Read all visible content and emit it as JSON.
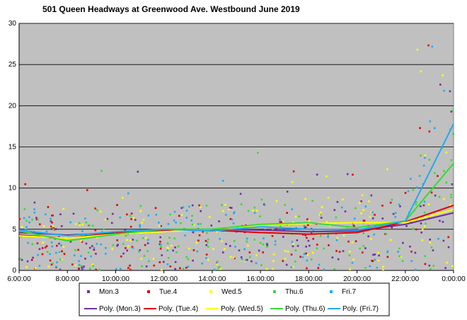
{
  "chart_data": {
    "type": "scatter",
    "title": "501 Queen Headways at Greenwood Ave. Westbound June 2019",
    "x_ticks": [
      "6:00:00",
      "8:00:00",
      "10:00:00",
      "12:00:00",
      "14:00:00",
      "16:00:00",
      "18:00:00",
      "20:00:00",
      "22:00:00",
      "0:00:00"
    ],
    "x_range_hours": [
      6,
      24
    ],
    "ylim": [
      0,
      30
    ],
    "y_ticks": [
      0,
      5,
      10,
      15,
      20,
      25,
      30
    ],
    "grid": "horizontal",
    "background": "#c0c0c0",
    "legend_position": "bottom",
    "series": [
      {
        "name": "Mon.3",
        "color": "#7030a0",
        "seed": 11
      },
      {
        "name": "Tue.4",
        "color": "#e00000",
        "seed": 23
      },
      {
        "name": "Wed.5",
        "color": "#ffff00",
        "seed": 37
      },
      {
        "name": "Thu.6",
        "color": "#33dd33",
        "seed": 51
      },
      {
        "name": "Fri.7",
        "color": "#22aaee",
        "seed": 67
      }
    ],
    "trendlines": [
      {
        "name": "Poly. (Mon.3)",
        "color": "#7030a0",
        "points": [
          [
            6,
            4.6
          ],
          [
            8,
            4.3
          ],
          [
            10,
            4.6
          ],
          [
            12,
            4.9
          ],
          [
            14,
            5.0
          ],
          [
            16,
            4.9
          ],
          [
            18,
            4.7
          ],
          [
            20,
            4.8
          ],
          [
            22,
            5.6
          ],
          [
            24,
            7.0
          ]
        ]
      },
      {
        "name": "Poly. (Tue.4)",
        "color": "#e00000",
        "points": [
          [
            6,
            4.3
          ],
          [
            8,
            3.9
          ],
          [
            10,
            4.6
          ],
          [
            12,
            4.8
          ],
          [
            14,
            4.9
          ],
          [
            16,
            4.6
          ],
          [
            18,
            4.4
          ],
          [
            20,
            4.6
          ],
          [
            22,
            5.9
          ],
          [
            24,
            7.9
          ]
        ]
      },
      {
        "name": "Poly. (Wed.5)",
        "color": "#ffff00",
        "points": [
          [
            6,
            4.2
          ],
          [
            8,
            3.9
          ],
          [
            10,
            4.4
          ],
          [
            12,
            4.7
          ],
          [
            14,
            5.0
          ],
          [
            16,
            5.5
          ],
          [
            18,
            5.7
          ],
          [
            20,
            5.8
          ],
          [
            22,
            5.8
          ],
          [
            24,
            7.4
          ]
        ]
      },
      {
        "name": "Poly. (Thu.6)",
        "color": "#33dd33",
        "points": [
          [
            6,
            4.8
          ],
          [
            8,
            3.6
          ],
          [
            10,
            4.4
          ],
          [
            12,
            5.0
          ],
          [
            14,
            5.0
          ],
          [
            16,
            5.6
          ],
          [
            18,
            5.8
          ],
          [
            20,
            5.2
          ],
          [
            22,
            6.0
          ],
          [
            24,
            13.0
          ]
        ]
      },
      {
        "name": "Poly. (Fri.7)",
        "color": "#22aaee",
        "points": [
          [
            6,
            4.9
          ],
          [
            8,
            4.2
          ],
          [
            10,
            4.7
          ],
          [
            12,
            5.0
          ],
          [
            14,
            4.8
          ],
          [
            16,
            5.3
          ],
          [
            18,
            5.0
          ],
          [
            20,
            4.9
          ],
          [
            22,
            6.0
          ],
          [
            24,
            17.8
          ]
        ]
      }
    ]
  }
}
